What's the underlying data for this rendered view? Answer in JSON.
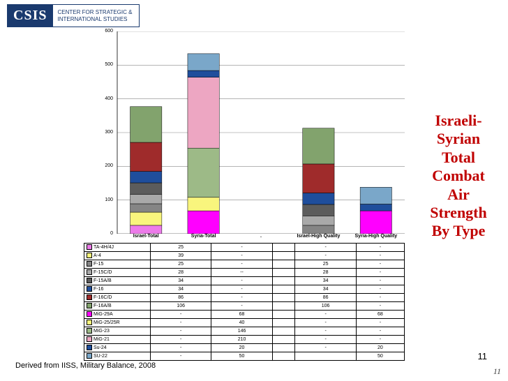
{
  "logo": {
    "mark": "CSIS",
    "line1": "CENTER FOR STRATEGIC &",
    "line2": "INTERNATIONAL STUDIES"
  },
  "title": "Israeli-Syrian Total Combat Air Strength By Type",
  "source": "Derived from IISS, Military Balance, 2008",
  "pagenum": "11",
  "corner": "11",
  "chart": {
    "ylim": [
      0,
      600
    ],
    "ytick_step": 100,
    "grid_color": "#3b3b3b",
    "categories": [
      "Israel-Total",
      "Syria-Total",
      ".",
      "Israel-High Quality",
      "Syria-High Quality"
    ]
  },
  "series": [
    {
      "name": "TA-4H/4J",
      "color": "#ed7bea",
      "values": [
        "25",
        "-",
        "",
        "-",
        "-"
      ]
    },
    {
      "name": "A-4",
      "color": "#f9f57d",
      "values": [
        "39",
        "-",
        "",
        "-",
        "-"
      ]
    },
    {
      "name": "F-15",
      "color": "#858585",
      "values": [
        "25",
        "-",
        "",
        "25",
        "-"
      ]
    },
    {
      "name": "F-15C/D",
      "color": "#a9a9a9",
      "values": [
        "28",
        "--",
        "",
        "28",
        "-"
      ]
    },
    {
      "name": "F-15A/B",
      "color": "#5c5c5c",
      "values": [
        "34",
        "-",
        "",
        "34",
        "-"
      ]
    },
    {
      "name": "F-16",
      "color": "#1f4e9c",
      "values": [
        "34",
        "-",
        "",
        "34",
        "-"
      ]
    },
    {
      "name": "F-16C/D",
      "color": "#9f2b2b",
      "values": [
        "86",
        "-",
        "",
        "86",
        "-"
      ]
    },
    {
      "name": "F-16A/B",
      "color": "#82a36d",
      "values": [
        "106",
        "-",
        "",
        "106",
        "-"
      ]
    },
    {
      "name": "MiG-29A",
      "color": "#ff00ff",
      "values": [
        "-",
        "68",
        "",
        "-",
        "68"
      ]
    },
    {
      "name": "MiG-25/25R",
      "color": "#f9f57d",
      "values": [
        "-",
        "40",
        "",
        "-",
        "-"
      ]
    },
    {
      "name": "MiG-23",
      "color": "#9dba87",
      "values": [
        "-",
        "146",
        "",
        "-",
        "-"
      ]
    },
    {
      "name": "MiG-21",
      "color": "#eda6c2",
      "values": [
        "-",
        "210",
        "",
        "-",
        "-"
      ]
    },
    {
      "name": "Su-24",
      "color": "#1f4e9c",
      "values": [
        "-",
        "20",
        "",
        "-",
        "20"
      ]
    },
    {
      "name": "SU-22",
      "color": "#7aa7c9",
      "values": [
        "-",
        "50",
        "",
        "",
        "50"
      ]
    }
  ]
}
